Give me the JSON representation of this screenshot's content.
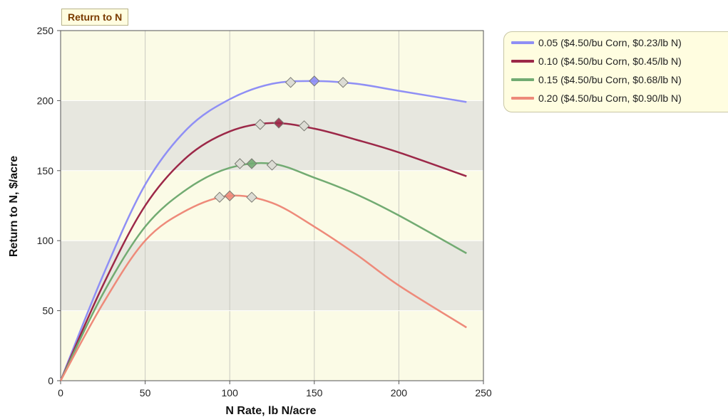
{
  "chart_data": {
    "type": "line",
    "title": "Return to N",
    "xlabel": "N Rate, lb N/acre",
    "ylabel": "Return to N, $/acre",
    "xlim": [
      0,
      250
    ],
    "ylim": [
      0,
      250
    ],
    "xticks": [
      "0",
      "50",
      "100",
      "150",
      "200",
      "250"
    ],
    "yticks": [
      "0",
      "50",
      "100",
      "150",
      "200",
      "250"
    ],
    "grid": true,
    "legend_position": "right",
    "series": [
      {
        "name": "0.05 ($4.50/bu Corn, $0.23/lb N)",
        "color": "#8f8ff5",
        "x": [
          0,
          25,
          50,
          75,
          100,
          125,
          150,
          175,
          200,
          240
        ],
        "y": [
          0,
          75,
          140,
          180,
          201,
          212,
          214,
          212,
          207,
          199
        ],
        "markers": [
          {
            "x": 136,
            "y": 213
          },
          {
            "x": 150,
            "y": 214,
            "emphasis": true
          },
          {
            "x": 167,
            "y": 213
          }
        ]
      },
      {
        "name": "0.10 ($4.50/bu Corn, $0.45/lb N)",
        "color": "#9c2848",
        "x": [
          0,
          25,
          50,
          75,
          100,
          125,
          150,
          175,
          200,
          240
        ],
        "y": [
          0,
          68,
          125,
          160,
          178,
          184,
          180,
          172,
          163,
          146
        ],
        "markers": [
          {
            "x": 118,
            "y": 183
          },
          {
            "x": 129,
            "y": 184,
            "emphasis": true
          },
          {
            "x": 144,
            "y": 182
          }
        ]
      },
      {
        "name": "0.15 ($4.50/bu Corn, $0.68/lb N)",
        "color": "#72ab72",
        "x": [
          0,
          25,
          50,
          75,
          100,
          125,
          150,
          175,
          200,
          240
        ],
        "y": [
          0,
          62,
          110,
          137,
          152,
          155,
          145,
          133,
          118,
          91
        ],
        "markers": [
          {
            "x": 106,
            "y": 155
          },
          {
            "x": 113,
            "y": 155,
            "emphasis": true
          },
          {
            "x": 125,
            "y": 154
          }
        ]
      },
      {
        "name": "0.20 ($4.50/bu Corn, $0.90/lb N)",
        "color": "#ee8a7a",
        "x": [
          0,
          25,
          50,
          75,
          100,
          125,
          150,
          175,
          200,
          240
        ],
        "y": [
          0,
          55,
          100,
          122,
          132,
          127,
          110,
          90,
          68,
          38
        ],
        "markers": [
          {
            "x": 94,
            "y": 131
          },
          {
            "x": 100,
            "y": 132,
            "emphasis": true
          },
          {
            "x": 113,
            "y": 131
          }
        ]
      }
    ]
  }
}
